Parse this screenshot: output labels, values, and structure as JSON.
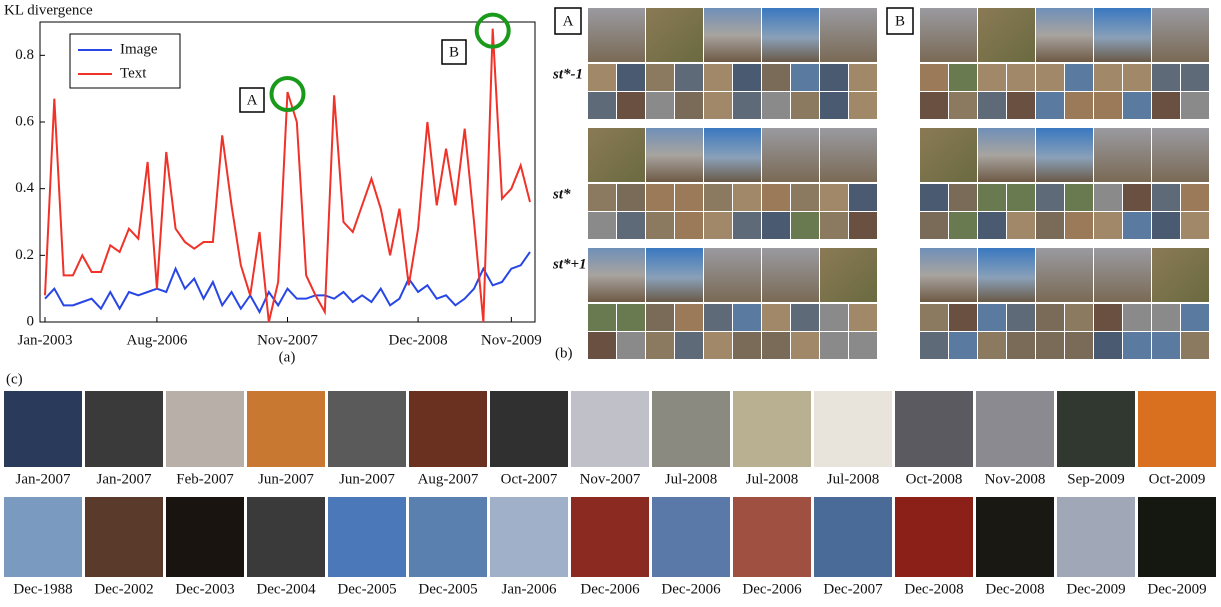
{
  "chart_data": {
    "type": "line",
    "ylabel": "KL divergence",
    "categories": [
      "Jan-2003",
      null,
      null,
      null,
      null,
      null,
      null,
      null,
      null,
      null,
      null,
      null,
      "Aug-2006",
      null,
      null,
      null,
      null,
      null,
      null,
      null,
      null,
      null,
      null,
      null,
      null,
      null,
      "Nov-2007",
      null,
      null,
      null,
      null,
      null,
      null,
      null,
      null,
      null,
      null,
      null,
      null,
      null,
      "Dec-2008",
      null,
      null,
      null,
      null,
      null,
      null,
      null,
      null,
      null,
      "Nov-2009",
      null,
      null
    ],
    "series": [
      {
        "name": "Image",
        "color": "#2846e6",
        "values": [
          0.07,
          0.1,
          0.05,
          0.05,
          0.06,
          0.07,
          0.04,
          0.09,
          0.04,
          0.09,
          0.08,
          0.09,
          0.1,
          0.09,
          0.16,
          0.1,
          0.13,
          0.07,
          0.12,
          0.05,
          0.09,
          0.04,
          0.08,
          0.03,
          0.09,
          0.05,
          0.1,
          0.07,
          0.07,
          0.08,
          0.08,
          0.07,
          0.09,
          0.06,
          0.08,
          0.06,
          0.1,
          0.05,
          0.07,
          0.13,
          0.09,
          0.11,
          0.07,
          0.08,
          0.05,
          0.07,
          0.1,
          0.16,
          0.11,
          0.12,
          0.16,
          0.17,
          0.21
        ]
      },
      {
        "name": "Text",
        "color": "#f03228",
        "values": [
          0.08,
          0.67,
          0.14,
          0.14,
          0.2,
          0.15,
          0.15,
          0.23,
          0.21,
          0.28,
          0.25,
          0.48,
          0.1,
          0.51,
          0.28,
          0.24,
          0.22,
          0.24,
          0.24,
          0.56,
          0.35,
          0.17,
          0.08,
          0.27,
          0.0,
          0.12,
          0.69,
          0.6,
          0.14,
          0.08,
          0.03,
          0.68,
          0.3,
          0.27,
          0.35,
          0.43,
          0.34,
          0.2,
          0.34,
          0.11,
          0.28,
          0.6,
          0.35,
          0.52,
          0.35,
          0.58,
          0.3,
          0.0,
          0.88,
          0.37,
          0.4,
          0.47,
          0.36
        ]
      }
    ],
    "ylim": [
      0,
      0.9
    ],
    "yticks": [
      0,
      0.2,
      0.4,
      0.6,
      0.8
    ],
    "legend": "upper left",
    "annotations": [
      "A",
      "B"
    ],
    "caption": "(a)"
  },
  "grids": {
    "caption": "(b)",
    "panels": [
      "A",
      "B"
    ],
    "row_labels": [
      "st*-1",
      "st*",
      "st*+1"
    ]
  },
  "photos": {
    "caption": "(c)",
    "rows": [
      [
        "Jan-2007",
        "Jan-2007",
        "Feb-2007",
        "Jun-2007",
        "Jun-2007",
        "Aug-2007",
        "Oct-2007",
        "Nov-2007",
        "Jul-2008",
        "Jul-2008",
        "Jul-2008",
        "Oct-2008",
        "Nov-2008",
        "Sep-2009",
        "Oct-2009"
      ],
      [
        "Dec-1988",
        "Dec-2002",
        "Dec-2003",
        "Dec-2004",
        "Dec-2005",
        "Dec-2005",
        "Jan-2006",
        "Dec-2006",
        "Dec-2006",
        "Dec-2006",
        "Dec-2007",
        "Dec-2008",
        "Dec-2008",
        "Dec-2009",
        "Dec-2009"
      ]
    ]
  }
}
